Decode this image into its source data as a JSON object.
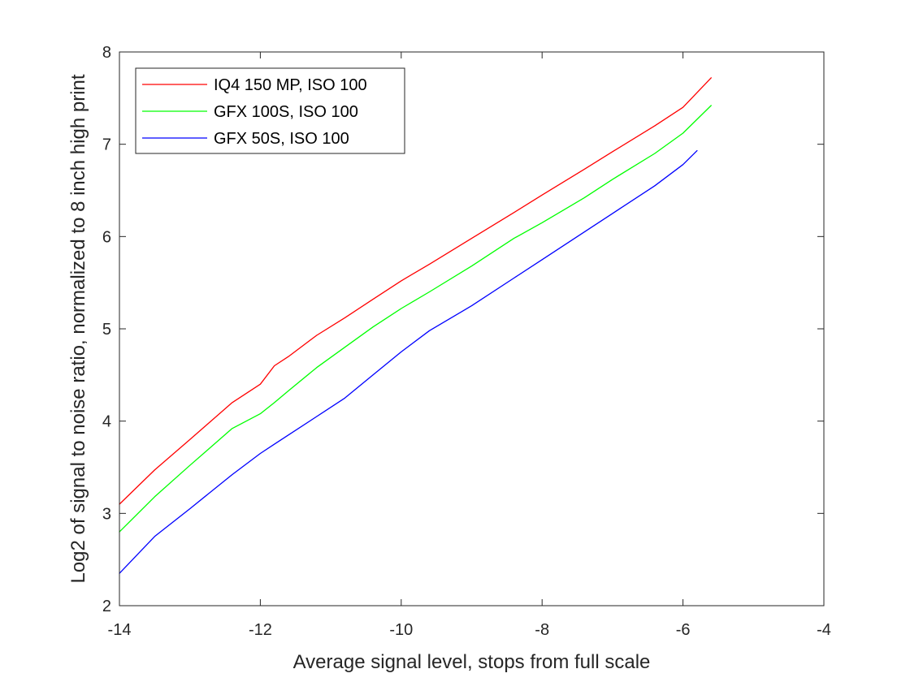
{
  "chart_data": {
    "type": "line",
    "title": "",
    "xlabel": "Average signal level, stops from full scale",
    "ylabel": "Log2 of signal to noise ratio, normalized to 8 inch high print",
    "xlim": [
      -14,
      -4
    ],
    "ylim": [
      2,
      8
    ],
    "xticks": [
      -14,
      -12,
      -10,
      -8,
      -6,
      -4
    ],
    "yticks": [
      2,
      3,
      4,
      5,
      6,
      7,
      8
    ],
    "xtick_labels": [
      "-14",
      "-12",
      "-10",
      "-8",
      "-6",
      "-4"
    ],
    "ytick_labels": [
      "2",
      "3",
      "4",
      "5",
      "6",
      "7",
      "8"
    ],
    "grid": false,
    "legend_position": "top-left",
    "series": [
      {
        "name": "IQ4 150 MP, ISO 100",
        "color": "#ff0000",
        "x": [
          -14,
          -13.5,
          -13,
          -12.4,
          -12,
          -11.8,
          -11.6,
          -11.2,
          -10.8,
          -10.4,
          -10,
          -9.6,
          -9,
          -8.4,
          -8,
          -7.4,
          -7,
          -6.4,
          -6,
          -5.6
        ],
        "y": [
          3.1,
          3.47,
          3.8,
          4.2,
          4.4,
          4.6,
          4.7,
          4.93,
          5.12,
          5.32,
          5.52,
          5.7,
          5.98,
          6.26,
          6.45,
          6.73,
          6.92,
          7.2,
          7.4,
          7.72
        ]
      },
      {
        "name": "GFX 100S, ISO 100",
        "color": "#00ff00",
        "x": [
          -14,
          -13.5,
          -13,
          -12.4,
          -12,
          -11.8,
          -11.6,
          -11.2,
          -10.8,
          -10.4,
          -10,
          -9.6,
          -9,
          -8.4,
          -8,
          -7.4,
          -7,
          -6.4,
          -6,
          -5.6
        ],
        "y": [
          2.8,
          3.18,
          3.52,
          3.92,
          4.08,
          4.2,
          4.33,
          4.58,
          4.8,
          5.02,
          5.22,
          5.4,
          5.68,
          5.98,
          6.15,
          6.42,
          6.62,
          6.9,
          7.12,
          7.42
        ]
      },
      {
        "name": "GFX 50S, ISO 100",
        "color": "#0000ff",
        "x": [
          -14,
          -13.5,
          -13,
          -12.4,
          -12,
          -11.8,
          -11.6,
          -11.2,
          -10.8,
          -10.4,
          -10,
          -9.6,
          -9,
          -8.4,
          -8,
          -7.4,
          -7,
          -6.4,
          -6,
          -5.8
        ],
        "y": [
          2.35,
          2.75,
          3.05,
          3.42,
          3.65,
          3.75,
          3.85,
          4.05,
          4.25,
          4.5,
          4.75,
          4.98,
          5.25,
          5.55,
          5.75,
          6.05,
          6.25,
          6.55,
          6.78,
          6.93
        ]
      }
    ]
  }
}
